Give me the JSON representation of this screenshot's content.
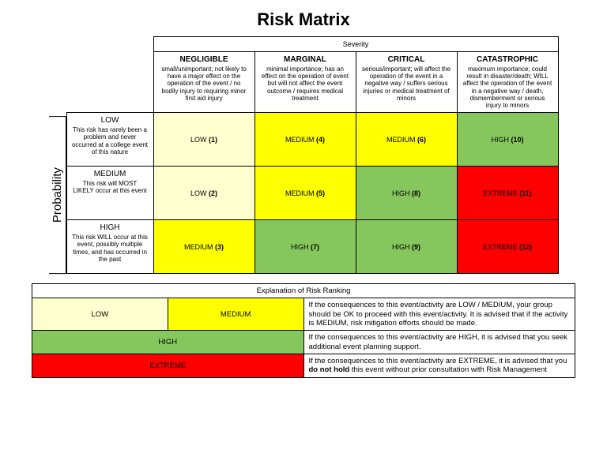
{
  "title": "Risk Matrix",
  "title_fontsize": 22,
  "axes": {
    "severity_label": "Severity",
    "probability_label": "Probability"
  },
  "colors": {
    "LOW": "#ffffcf",
    "MEDIUM": "#ffff00",
    "HIGH": "#85c75c",
    "EXTREME": "#ff0000",
    "border": "#000000",
    "background": "#ffffff"
  },
  "severity_columns": [
    {
      "key": "negligible",
      "heading": "NEGLIGIBLE",
      "desc": "small/unimportant; not likely to have a major effect on the operation of the event / no bodily injury to requiring minor first aid injury"
    },
    {
      "key": "marginal",
      "heading": "MARGINAL",
      "desc": "minimal importance; has an effect on the operation of event but will not affect the event outcome / requires medical treatment"
    },
    {
      "key": "critical",
      "heading": "CRITICAL",
      "desc": "serious/important; will affect the operation of the event in a negative way / suffers serious injuries or medical treatment of minors"
    },
    {
      "key": "catastrophic",
      "heading": "CATASTROPHIC",
      "desc": "maximum importance; could result in disaster/death; WILL affect the operation of the event in a negative way / death, dismemberment or serious injury to minors"
    }
  ],
  "probability_rows": [
    {
      "key": "low",
      "heading": "LOW",
      "desc": "This risk has rarely been a problem and never occurred at a college event of this nature"
    },
    {
      "key": "medium",
      "heading": "MEDIUM",
      "desc": "This risk will MOST LIKELY occur at this event"
    },
    {
      "key": "high",
      "heading": "HIGH",
      "desc": "This risk WILL occur at this event, possibly multiple times, and has occurred in the past"
    }
  ],
  "cells": [
    [
      {
        "level": "LOW",
        "num": "(1)"
      },
      {
        "level": "MEDIUM",
        "num": "(4)"
      },
      {
        "level": "MEDIUM",
        "num": "(6)"
      },
      {
        "level": "HIGH",
        "num": "(10)"
      }
    ],
    [
      {
        "level": "LOW",
        "num": "(2)"
      },
      {
        "level": "MEDIUM",
        "num": "(5)"
      },
      {
        "level": "HIGH",
        "num": "(8)"
      },
      {
        "level": "EXTREME",
        "num": "(11)"
      }
    ],
    [
      {
        "level": "MEDIUM",
        "num": "(3)"
      },
      {
        "level": "HIGH",
        "num": "(7)"
      },
      {
        "level": "HIGH",
        "num": "(9)"
      },
      {
        "level": "EXTREME",
        "num": "(12)"
      }
    ]
  ],
  "explanation": {
    "title": "Explanation of Risk Ranking",
    "rows": [
      {
        "levels": [
          "LOW",
          "MEDIUM"
        ],
        "text": " If the consequences to this event/activity are LOW / MEDIUM, your group should be OK to proceed with this event/activity. It is advised that if the activity is MEDIUM, risk mitigation efforts should be made."
      },
      {
        "levels": [
          "HIGH"
        ],
        "text": "If the consequences to this event/activity are HIGH, it is advised that you seek additional event planning support."
      },
      {
        "levels": [
          "EXTREME"
        ],
        "text_pre": "If the consequences to this event/activity are EXTREME, it is advised that you ",
        "text_bold": "do not hold",
        "text_post": " this event without prior consultation with Risk Management"
      }
    ]
  }
}
